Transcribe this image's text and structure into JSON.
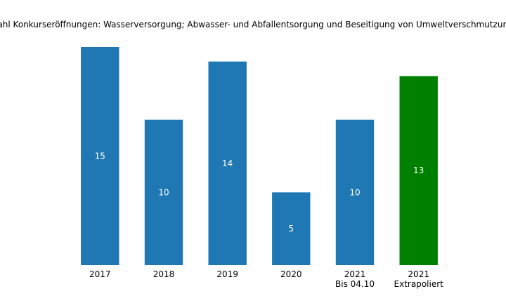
{
  "chart_data": {
    "type": "bar",
    "title": "Anzahl Konkurseröffnungen: Wasserversorgung; Abwasser- und Abfallentsorgung und Beseitigung von Umweltverschmutzungen",
    "categories": [
      [
        "2017"
      ],
      [
        "2018"
      ],
      [
        "2019"
      ],
      [
        "2020"
      ],
      [
        "2021",
        "Bis 04.10"
      ],
      [
        "2021",
        "Extrapoliert"
      ]
    ],
    "values": [
      15,
      10,
      14,
      5,
      10,
      13
    ],
    "colors": [
      "#1f77b4",
      "#1f77b4",
      "#1f77b4",
      "#1f77b4",
      "#1f77b4",
      "#008000"
    ],
    "xlabel": "",
    "ylabel": "",
    "ylim": [
      0,
      15
    ],
    "grid": false,
    "axes_visible": false
  }
}
